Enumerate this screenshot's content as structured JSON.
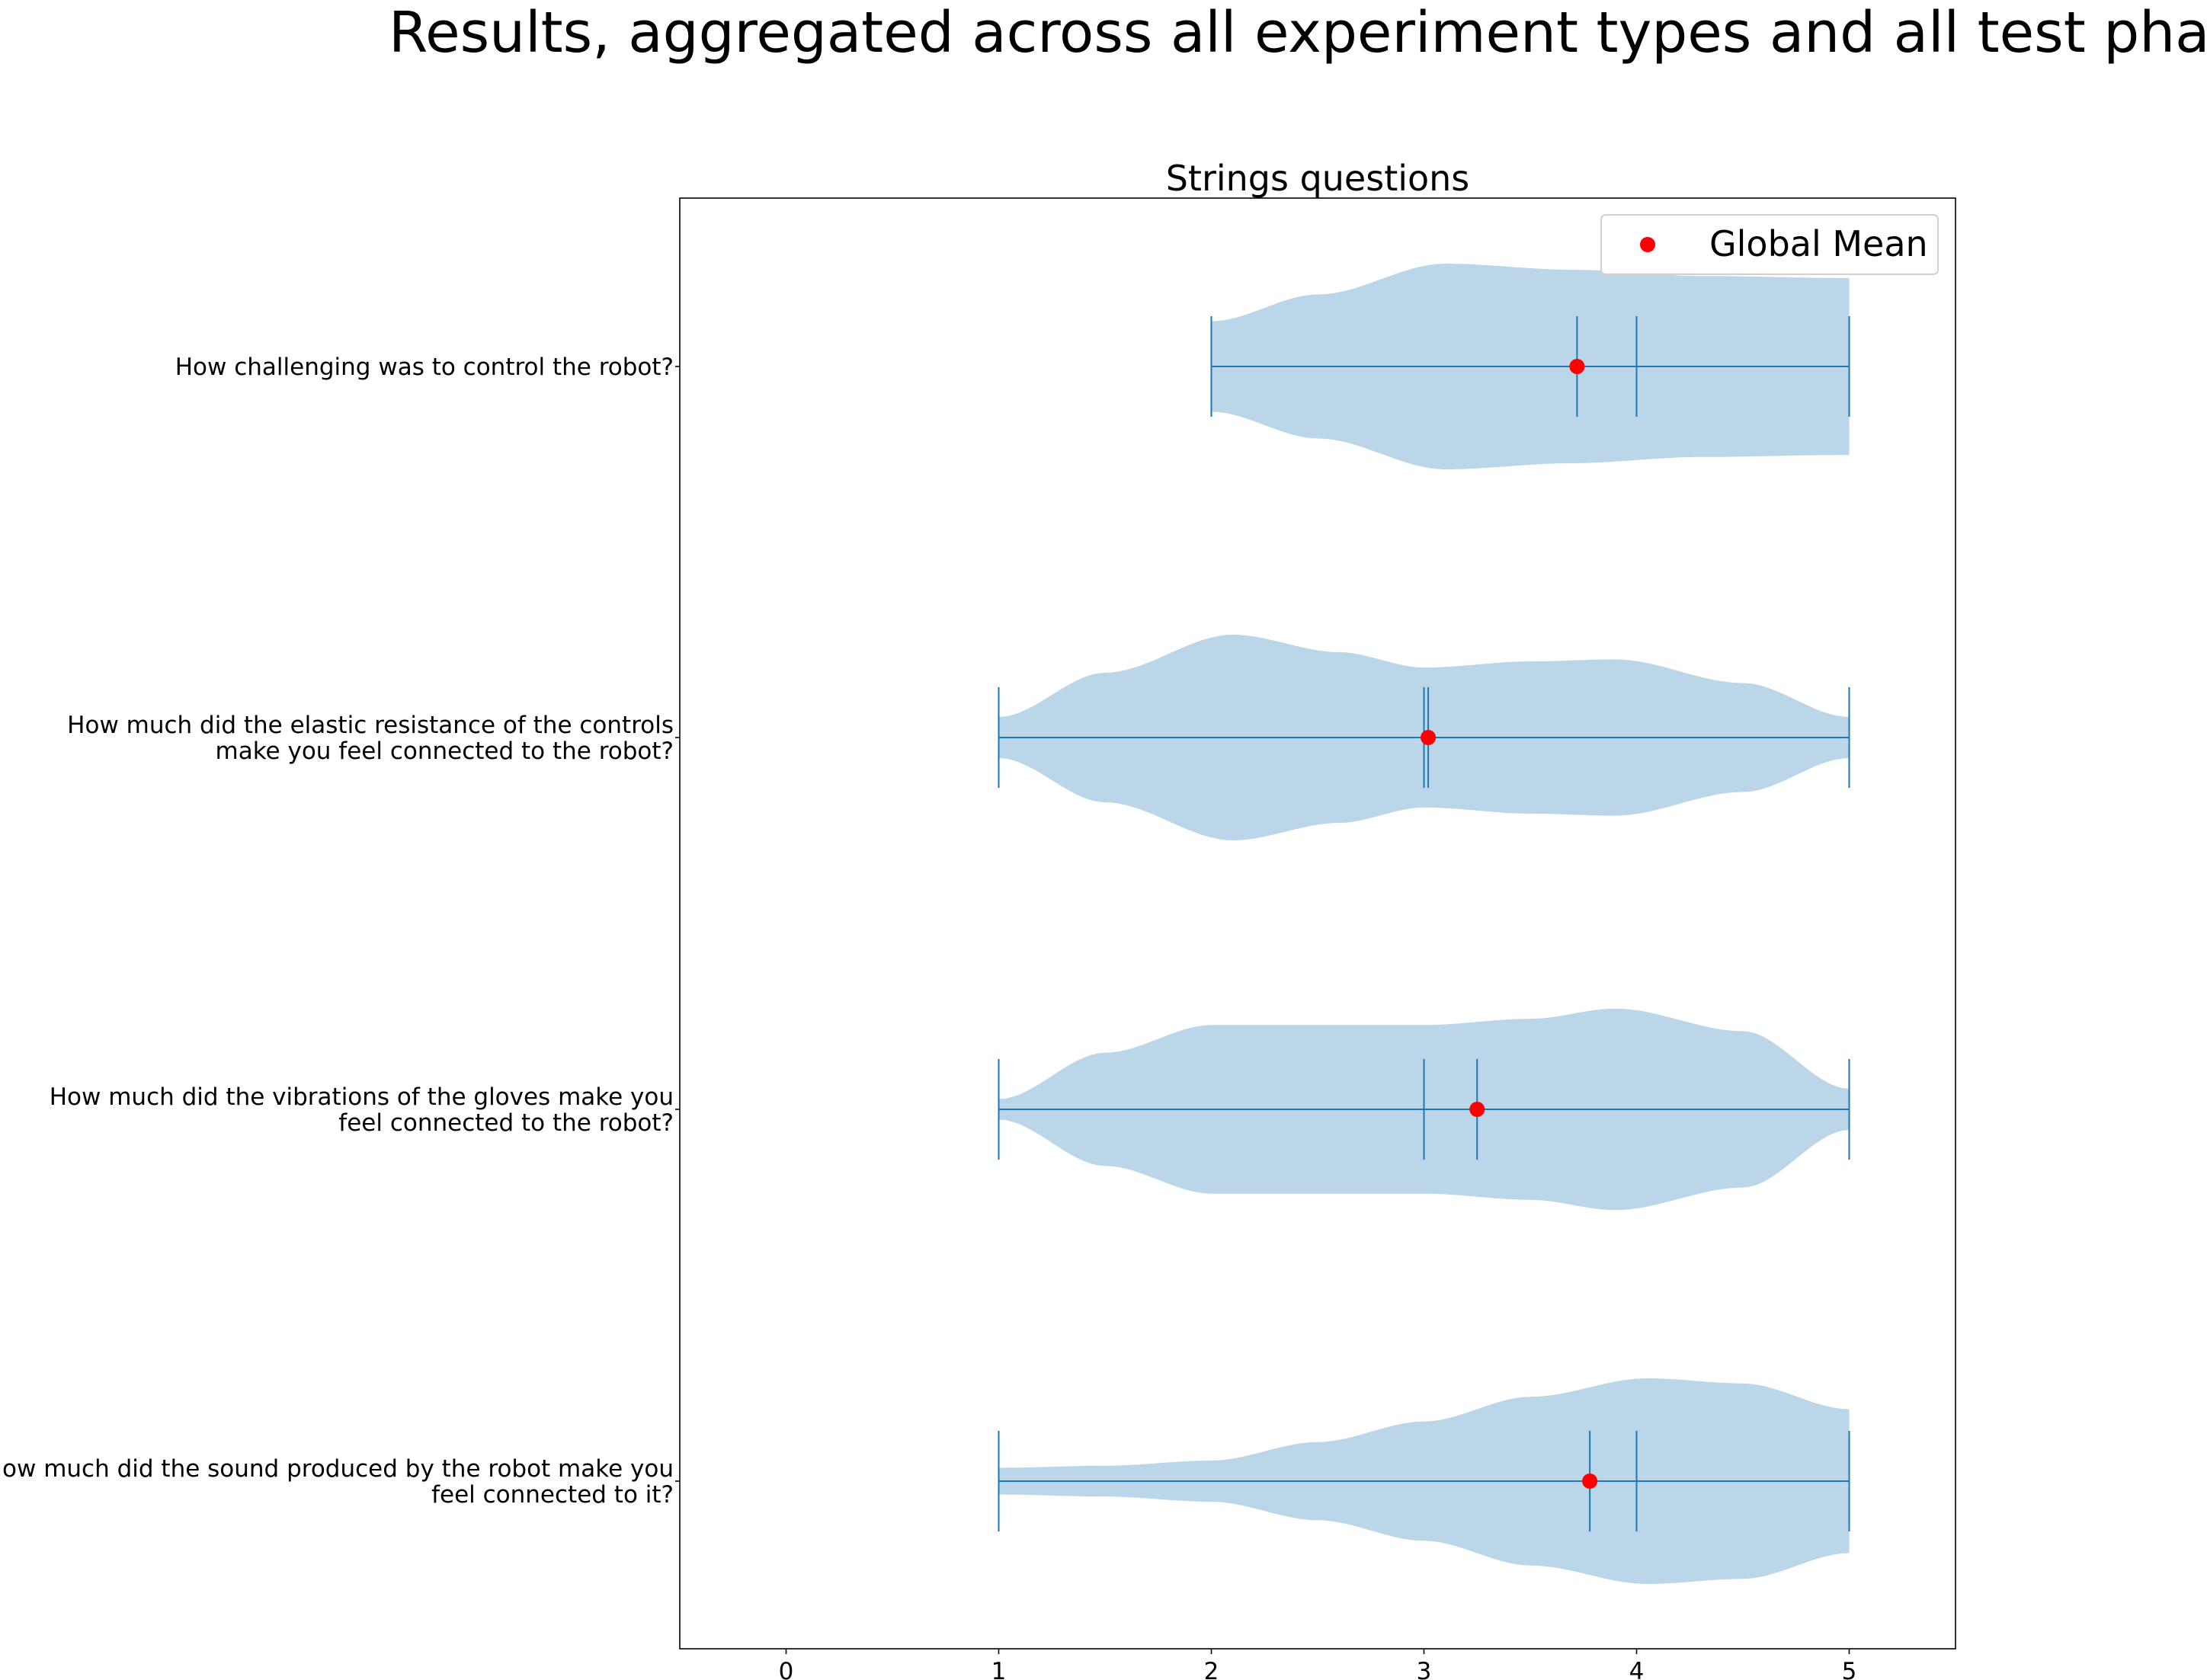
{
  "figure": {
    "suptitle": "Results, aggregated across all experiment types and all test phases"
  },
  "chart_data": {
    "type": "violin",
    "orientation": "horizontal",
    "title": "Strings questions",
    "xlabel": "",
    "ylabel": "",
    "xlim": [
      -0.5,
      5.5
    ],
    "xticks": [
      "0",
      "1",
      "2",
      "3",
      "4",
      "5"
    ],
    "grid": false,
    "legend": {
      "placement": "top-right",
      "entries": [
        {
          "label": "Global Mean",
          "marker": "circle",
          "color": "#ff0000"
        }
      ]
    },
    "colors": {
      "violin_fill": "#1f77b4",
      "violin_alpha": 0.3,
      "lines": "#1f77b4",
      "mean_marker": "#ff0000"
    },
    "questions": [
      {
        "label_lines": [
          "How challenging was to control the robot?"
        ],
        "min": 2,
        "max": 5,
        "median": 4,
        "mean": 3.72,
        "profile": [
          [
            2,
            0.44
          ],
          [
            2.5,
            0.7
          ],
          [
            3.1,
            1.0
          ],
          [
            3.7,
            0.94
          ],
          [
            4.3,
            0.88
          ],
          [
            5,
            0.86
          ]
        ]
      },
      {
        "label_lines": [
          "How much did the elastic resistance of the controls",
          "make you feel connected to the robot?"
        ],
        "min": 1,
        "max": 5,
        "median": 3,
        "mean": 3.02,
        "profile": [
          [
            1,
            0.2
          ],
          [
            1.5,
            0.63
          ],
          [
            2.1,
            1.0
          ],
          [
            2.6,
            0.83
          ],
          [
            3.0,
            0.68
          ],
          [
            3.5,
            0.74
          ],
          [
            3.9,
            0.76
          ],
          [
            4.5,
            0.53
          ],
          [
            5,
            0.2
          ]
        ]
      },
      {
        "label_lines": [
          "How much did the vibrations of the gloves make you",
          "feel connected to the robot?"
        ],
        "min": 1,
        "max": 5,
        "median": 3,
        "mean": 3.25,
        "profile": [
          [
            1,
            0.1
          ],
          [
            1.5,
            0.55
          ],
          [
            2.0,
            0.82
          ],
          [
            2.5,
            0.82
          ],
          [
            3.0,
            0.82
          ],
          [
            3.5,
            0.88
          ],
          [
            3.9,
            0.98
          ],
          [
            4.5,
            0.76
          ],
          [
            5,
            0.2
          ]
        ]
      },
      {
        "label_lines": [
          "How much did the sound produced by the robot make you",
          "feel connected to it?"
        ],
        "min": 1,
        "max": 5,
        "median": 4,
        "mean": 3.78,
        "profile": [
          [
            1,
            0.13
          ],
          [
            1.5,
            0.15
          ],
          [
            2.0,
            0.2
          ],
          [
            2.5,
            0.38
          ],
          [
            3.0,
            0.58
          ],
          [
            3.5,
            0.82
          ],
          [
            4.05,
            1.0
          ],
          [
            4.5,
            0.95
          ],
          [
            5,
            0.7
          ]
        ]
      }
    ]
  }
}
